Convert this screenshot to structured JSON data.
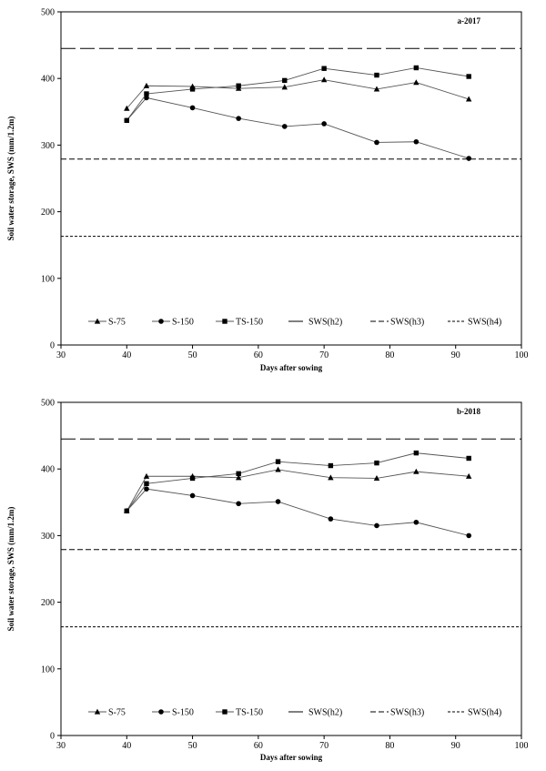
{
  "legend_items": [
    {
      "label": "S-75",
      "marker": "triangle",
      "dash": ""
    },
    {
      "label": "S-150",
      "marker": "circle",
      "dash": ""
    },
    {
      "label": "TS-150",
      "marker": "square",
      "dash": ""
    },
    {
      "label": "SWS(h2)",
      "marker": "",
      "dash": "16,5"
    },
    {
      "label": "SWS(h3)",
      "marker": "",
      "dash": "6,3"
    },
    {
      "label": "SWS(h4)",
      "marker": "",
      "dash": "3,2"
    }
  ],
  "chart_data": [
    {
      "type": "line",
      "panel_label": "a-2017",
      "xlabel": "Days after sowing",
      "ylabel": "Soil water storage, SWS (mm/1.2m)",
      "xlim": [
        30,
        100
      ],
      "ylim": [
        0,
        500
      ],
      "xticks": [
        30,
        40,
        50,
        60,
        70,
        80,
        90,
        100
      ],
      "yticks": [
        0,
        100,
        200,
        300,
        400,
        500
      ],
      "grid": false,
      "legend_position": "bottom",
      "series": [
        {
          "name": "S-75",
          "marker": "triangle",
          "x": [
            40,
            43,
            50,
            57,
            64,
            70,
            78,
            84,
            92
          ],
          "y": [
            355,
            389,
            388,
            385,
            387,
            398,
            384,
            394,
            369
          ]
        },
        {
          "name": "S-150",
          "marker": "circle",
          "x": [
            40,
            43,
            50,
            57,
            64,
            70,
            78,
            84,
            92
          ],
          "y": [
            337,
            371,
            356,
            340,
            328,
            332,
            304,
            305,
            280
          ]
        },
        {
          "name": "TS-150",
          "marker": "square",
          "x": [
            40,
            43,
            50,
            57,
            64,
            70,
            78,
            84,
            92
          ],
          "y": [
            337,
            377,
            384,
            389,
            397,
            415,
            405,
            416,
            403
          ]
        }
      ],
      "reference_lines": [
        {
          "name": "SWS(h2)",
          "y": 445
        },
        {
          "name": "SWS(h3)",
          "y": 279
        },
        {
          "name": "SWS(h4)",
          "y": 163
        }
      ]
    },
    {
      "type": "line",
      "panel_label": "b-2018",
      "xlabel": "Days after sowing",
      "ylabel": "Soil water storage, SWS (mm/1.2m)",
      "xlim": [
        30,
        100
      ],
      "ylim": [
        0,
        500
      ],
      "xticks": [
        30,
        40,
        50,
        60,
        70,
        80,
        90,
        100
      ],
      "yticks": [
        0,
        100,
        200,
        300,
        400,
        500
      ],
      "grid": false,
      "legend_position": "bottom",
      "series": [
        {
          "name": "S-75",
          "marker": "triangle",
          "x": [
            40,
            43,
            50,
            57,
            63,
            71,
            78,
            84,
            92
          ],
          "y": [
            337,
            389,
            389,
            387,
            399,
            387,
            386,
            396,
            389
          ]
        },
        {
          "name": "S-150",
          "marker": "circle",
          "x": [
            40,
            43,
            50,
            57,
            63,
            71,
            78,
            84,
            92
          ],
          "y": [
            337,
            370,
            360,
            348,
            351,
            325,
            315,
            320,
            300
          ]
        },
        {
          "name": "TS-150",
          "marker": "square",
          "x": [
            40,
            43,
            50,
            57,
            63,
            71,
            78,
            84,
            92
          ],
          "y": [
            337,
            378,
            386,
            393,
            411,
            405,
            409,
            424,
            416
          ]
        }
      ],
      "reference_lines": [
        {
          "name": "SWS(h2)",
          "y": 445
        },
        {
          "name": "SWS(h3)",
          "y": 279
        },
        {
          "name": "SWS(h4)",
          "y": 163
        }
      ]
    }
  ]
}
